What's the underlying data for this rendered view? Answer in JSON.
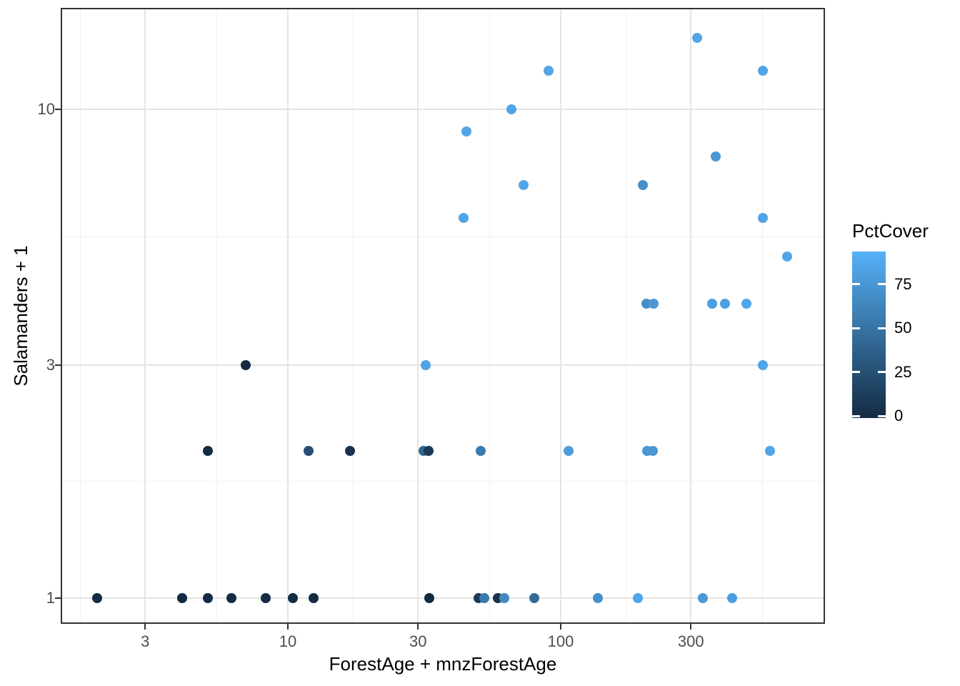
{
  "chart_data": {
    "type": "scatter",
    "title": "",
    "xlabel": "ForestAge + mnzForestAge",
    "ylabel": "Salamanders + 1",
    "x_scale": "log10",
    "y_scale": "log10",
    "xlim": [
      1.49,
      918
    ],
    "ylim": [
      0.89,
      16
    ],
    "grid": true,
    "x_ticks": [
      3,
      10,
      30,
      100,
      300
    ],
    "x_minor_breaks": [
      1.7321,
      5.4772,
      17.3205,
      54.7723,
      173.2051,
      547.7226
    ],
    "y_ticks": [
      1,
      3,
      10
    ],
    "y_minor_breaks": [
      1.7321,
      5.4772
    ],
    "legend": {
      "title": "PctCover",
      "position": "right",
      "ticks": [
        0,
        25,
        50,
        75
      ],
      "limits": [
        0,
        93
      ],
      "low_color": "#132B43",
      "high_color": "#56B1F7"
    },
    "points": [
      {
        "x": 2.0,
        "y": 1,
        "cover": 0
      },
      {
        "x": 4.1,
        "y": 1,
        "cover": 0
      },
      {
        "x": 5.1,
        "y": 1,
        "cover": 0
      },
      {
        "x": 6.2,
        "y": 1,
        "cover": 0
      },
      {
        "x": 8.3,
        "y": 1,
        "cover": 0
      },
      {
        "x": 10.4,
        "y": 1,
        "cover": 0
      },
      {
        "x": 12.4,
        "y": 1,
        "cover": 0
      },
      {
        "x": 33,
        "y": 1,
        "cover": 0
      },
      {
        "x": 50,
        "y": 1,
        "cover": 10
      },
      {
        "x": 52.5,
        "y": 1,
        "cover": 55
      },
      {
        "x": 59,
        "y": 1,
        "cover": 5
      },
      {
        "x": 62,
        "y": 1,
        "cover": 65
      },
      {
        "x": 80,
        "y": 1,
        "cover": 45
      },
      {
        "x": 137,
        "y": 1,
        "cover": 70
      },
      {
        "x": 192,
        "y": 1,
        "cover": 85
      },
      {
        "x": 332,
        "y": 1,
        "cover": 75
      },
      {
        "x": 424,
        "y": 1,
        "cover": 80
      },
      {
        "x": 5.1,
        "y": 2,
        "cover": 0
      },
      {
        "x": 11.9,
        "y": 2,
        "cover": 25
      },
      {
        "x": 16.9,
        "y": 2,
        "cover": 5
      },
      {
        "x": 31.4,
        "y": 2,
        "cover": 40
      },
      {
        "x": 32.8,
        "y": 2,
        "cover": 10
      },
      {
        "x": 51,
        "y": 2,
        "cover": 55
      },
      {
        "x": 107,
        "y": 2,
        "cover": 80
      },
      {
        "x": 207,
        "y": 2,
        "cover": 75
      },
      {
        "x": 218,
        "y": 2,
        "cover": 75
      },
      {
        "x": 585,
        "y": 2,
        "cover": 85
      },
      {
        "x": 7,
        "y": 3,
        "cover": 0
      },
      {
        "x": 32,
        "y": 3,
        "cover": 85
      },
      {
        "x": 549,
        "y": 3,
        "cover": 85
      },
      {
        "x": 206,
        "y": 4,
        "cover": 70
      },
      {
        "x": 219,
        "y": 4,
        "cover": 75
      },
      {
        "x": 358,
        "y": 4,
        "cover": 80
      },
      {
        "x": 400,
        "y": 4,
        "cover": 80
      },
      {
        "x": 480,
        "y": 4,
        "cover": 85
      },
      {
        "x": 675,
        "y": 5,
        "cover": 85
      },
      {
        "x": 44,
        "y": 6,
        "cover": 85
      },
      {
        "x": 549,
        "y": 6,
        "cover": 85
      },
      {
        "x": 73,
        "y": 7,
        "cover": 85
      },
      {
        "x": 200,
        "y": 7,
        "cover": 70
      },
      {
        "x": 370,
        "y": 8,
        "cover": 75
      },
      {
        "x": 45,
        "y": 9,
        "cover": 85
      },
      {
        "x": 66,
        "y": 10,
        "cover": 85
      },
      {
        "x": 90,
        "y": 12,
        "cover": 85
      },
      {
        "x": 549,
        "y": 12,
        "cover": 85
      },
      {
        "x": 317,
        "y": 14,
        "cover": 85
      }
    ]
  },
  "colors": {
    "grid_major": "#e4e4e4",
    "grid_minor": "#f0f0f0",
    "panel_border": "#333333",
    "tick_mark": "#333333",
    "tick_label": "#4d4d4d",
    "axis_title": "#000000"
  }
}
